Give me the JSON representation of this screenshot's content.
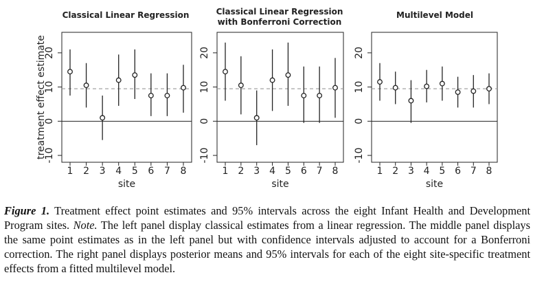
{
  "chart_data": [
    {
      "type": "scatter",
      "title": "Classical Linear Regression",
      "xlabel": "site",
      "ylabel": "treatment effect estimate",
      "x": [
        1,
        2,
        3,
        4,
        5,
        6,
        7,
        8
      ],
      "estimate": [
        14.5,
        10.5,
        1,
        12,
        13.5,
        7.5,
        7.5,
        9.8
      ],
      "lower": [
        7.5,
        4,
        -5.5,
        4.5,
        6.5,
        1.5,
        1.5,
        2.5
      ],
      "upper": [
        21,
        17,
        7.5,
        19.5,
        21,
        14,
        14,
        16.5
      ],
      "reference_line": 9.5,
      "zero_line": 0,
      "yticks": [
        -10,
        0,
        10,
        20
      ],
      "xticks": [
        "1",
        "2",
        "3",
        "4",
        "5",
        "6",
        "7",
        "8"
      ],
      "ylim": [
        -12,
        26
      ]
    },
    {
      "type": "scatter",
      "title": "Classical Linear Regression\nwith Bonferroni Correction",
      "xlabel": "site",
      "ylabel": "",
      "x": [
        1,
        2,
        3,
        4,
        5,
        6,
        7,
        8
      ],
      "estimate": [
        14.5,
        10.5,
        1,
        12,
        13.5,
        7.5,
        7.5,
        9.8
      ],
      "lower": [
        6,
        2,
        -7,
        3,
        4.5,
        -0.5,
        -0.5,
        1
      ],
      "upper": [
        23,
        19,
        9,
        21,
        23,
        16,
        16,
        18.5
      ],
      "reference_line": 9.5,
      "zero_line": 0,
      "yticks": [
        -10,
        0,
        10,
        20
      ],
      "xticks": [
        "1",
        "2",
        "3",
        "4",
        "5",
        "6",
        "7",
        "8"
      ],
      "ylim": [
        -12,
        26
      ]
    },
    {
      "type": "scatter",
      "title": "Multilevel Model",
      "xlabel": "site",
      "ylabel": "",
      "x": [
        1,
        2,
        3,
        4,
        5,
        6,
        7,
        8
      ],
      "estimate": [
        11.5,
        9.8,
        6,
        10.2,
        11,
        8.5,
        8.8,
        9.5
      ],
      "lower": [
        6,
        5,
        -0.5,
        5.5,
        6,
        4,
        4,
        5
      ],
      "upper": [
        17,
        14.5,
        12,
        15,
        16,
        13,
        13.5,
        14
      ],
      "reference_line": 9.5,
      "zero_line": 0,
      "yticks": [
        -10,
        0,
        10,
        20
      ],
      "xticks": [
        "1",
        "2",
        "3",
        "4",
        "5",
        "6",
        "7",
        "8"
      ],
      "ylim": [
        -12,
        26
      ]
    }
  ],
  "caption": {
    "lead": "Figure 1.",
    "text1": " Treatment effect point estimates and 95% intervals across the eight Infant Health and Development Program sites. ",
    "note_label": "Note.",
    "text2": " The left panel display classical estimates from a linear regression. The middle panel displays the same point estimates as in the left panel but with confidence intervals adjusted to account for a Bonferroni correction. The right panel displays posterior means and 95% intervals for each of the eight site-specific treatment effects from a fitted multilevel model."
  }
}
